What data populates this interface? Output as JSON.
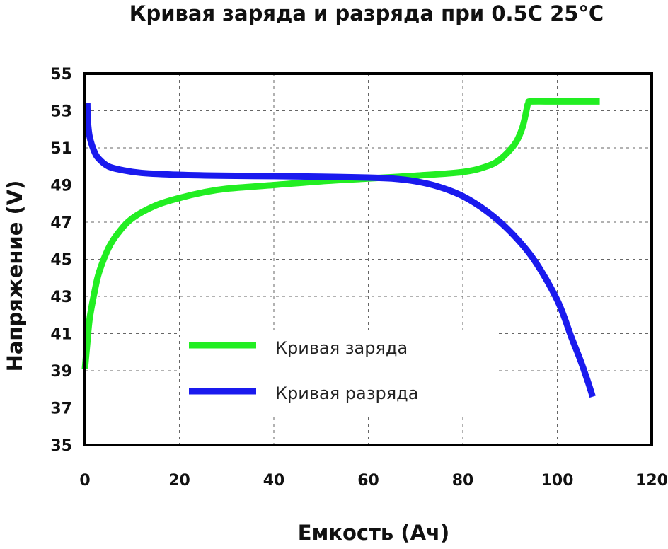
{
  "chart_data": {
    "type": "line",
    "title": "Кривая заряда и разряда при 0.5C 25°C",
    "xlabel": "Емкость (Ач)",
    "ylabel": "Напряжение (V)",
    "xlim": [
      0,
      120
    ],
    "ylim": [
      35,
      55
    ],
    "xticks": [
      0,
      20,
      40,
      60,
      80,
      100,
      120
    ],
    "yticks": [
      35,
      37,
      39,
      41,
      43,
      45,
      47,
      49,
      51,
      53,
      55
    ],
    "grid": true,
    "legend_position": "bottom-center",
    "series": [
      {
        "name": "Кривая заряда",
        "color": "#22ee22",
        "x": [
          0,
          0.5,
          1,
          2,
          3,
          5,
          7,
          10,
          15,
          20,
          25,
          30,
          40,
          50,
          60,
          70,
          80,
          85,
          88,
          91,
          92.5,
          93.3,
          93.7,
          94,
          94.5,
          100,
          109
        ],
        "y": [
          39.1,
          40.5,
          41.8,
          43.2,
          44.3,
          45.6,
          46.4,
          47.2,
          47.9,
          48.3,
          48.6,
          48.8,
          49.0,
          49.2,
          49.35,
          49.5,
          49.7,
          50.0,
          50.4,
          51.2,
          52.0,
          52.8,
          53.3,
          53.45,
          53.5,
          53.5,
          53.5
        ]
      },
      {
        "name": "Кривая разряда",
        "color": "#1a1aee",
        "x": [
          0.5,
          0.6,
          1,
          2,
          3,
          5,
          8,
          12,
          20,
          30,
          40,
          50,
          60,
          65,
          70,
          75,
          80,
          85,
          90,
          95,
          100,
          103,
          105,
          106.5,
          107.5
        ],
        "y": [
          53.4,
          52.5,
          51.6,
          50.8,
          50.4,
          50.0,
          49.8,
          49.65,
          49.55,
          49.5,
          49.48,
          49.45,
          49.4,
          49.35,
          49.2,
          48.9,
          48.4,
          47.6,
          46.5,
          45.0,
          42.8,
          40.8,
          39.5,
          38.4,
          37.6
        ]
      }
    ]
  }
}
